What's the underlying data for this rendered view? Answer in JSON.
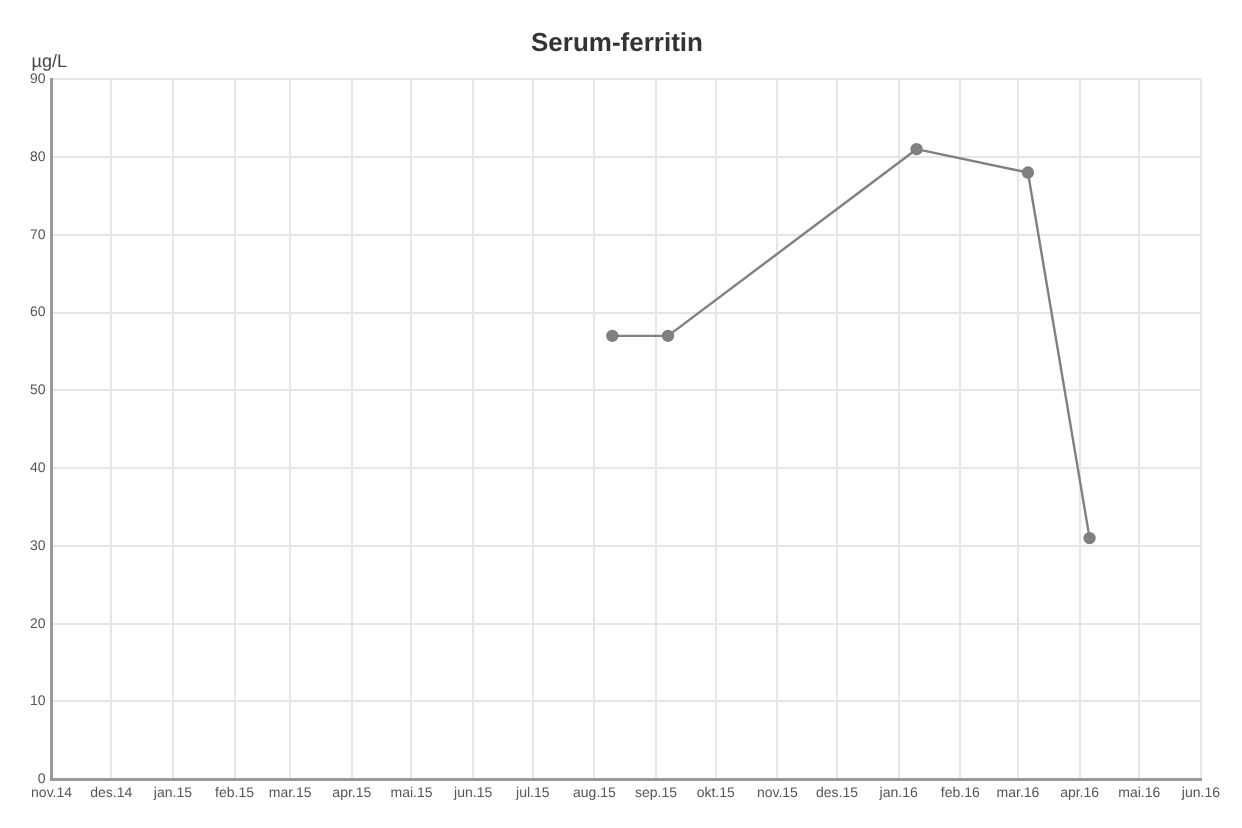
{
  "chart_data": {
    "type": "line",
    "title": "Serum-ferritin",
    "ylabel": "µg/L",
    "x": [
      "2015-08-10",
      "2015-09-07",
      "2016-01-10",
      "2016-03-06",
      "2016-04-06"
    ],
    "series": [
      {
        "color": "#808080",
        "values": [
          57,
          57,
          81,
          78,
          31
        ]
      }
    ],
    "xlim": [
      "2014-11",
      "2016-06"
    ],
    "xticks": [
      {
        "value": "2014-11",
        "label": "nov.14"
      },
      {
        "value": "2014-12",
        "label": "des.14"
      },
      {
        "value": "2015-01",
        "label": "jan.15"
      },
      {
        "value": "2015-02",
        "label": "feb.15"
      },
      {
        "value": "2015-03",
        "label": "mar.15"
      },
      {
        "value": "2015-04",
        "label": "apr.15"
      },
      {
        "value": "2015-05",
        "label": "mai.15"
      },
      {
        "value": "2015-06",
        "label": "jun.15"
      },
      {
        "value": "2015-07",
        "label": "jul.15"
      },
      {
        "value": "2015-08",
        "label": "aug.15"
      },
      {
        "value": "2015-09",
        "label": "sep.15"
      },
      {
        "value": "2015-10",
        "label": "okt.15"
      },
      {
        "value": "2015-11",
        "label": "nov.15"
      },
      {
        "value": "2015-12",
        "label": "des.15"
      },
      {
        "value": "2016-01",
        "label": "jan.16"
      },
      {
        "value": "2016-02",
        "label": "feb.16"
      },
      {
        "value": "2016-03",
        "label": "mar.16"
      },
      {
        "value": "2016-04",
        "label": "apr.16"
      },
      {
        "value": "2016-05",
        "label": "mai.16"
      },
      {
        "value": "2016-06",
        "label": "jun.16"
      }
    ],
    "ylim": [
      0,
      90
    ],
    "yticks": [
      0,
      10,
      20,
      30,
      40,
      50,
      60,
      70,
      80,
      90
    ],
    "grid": true,
    "legend": false,
    "marker": "circle",
    "line_style": "solid"
  }
}
